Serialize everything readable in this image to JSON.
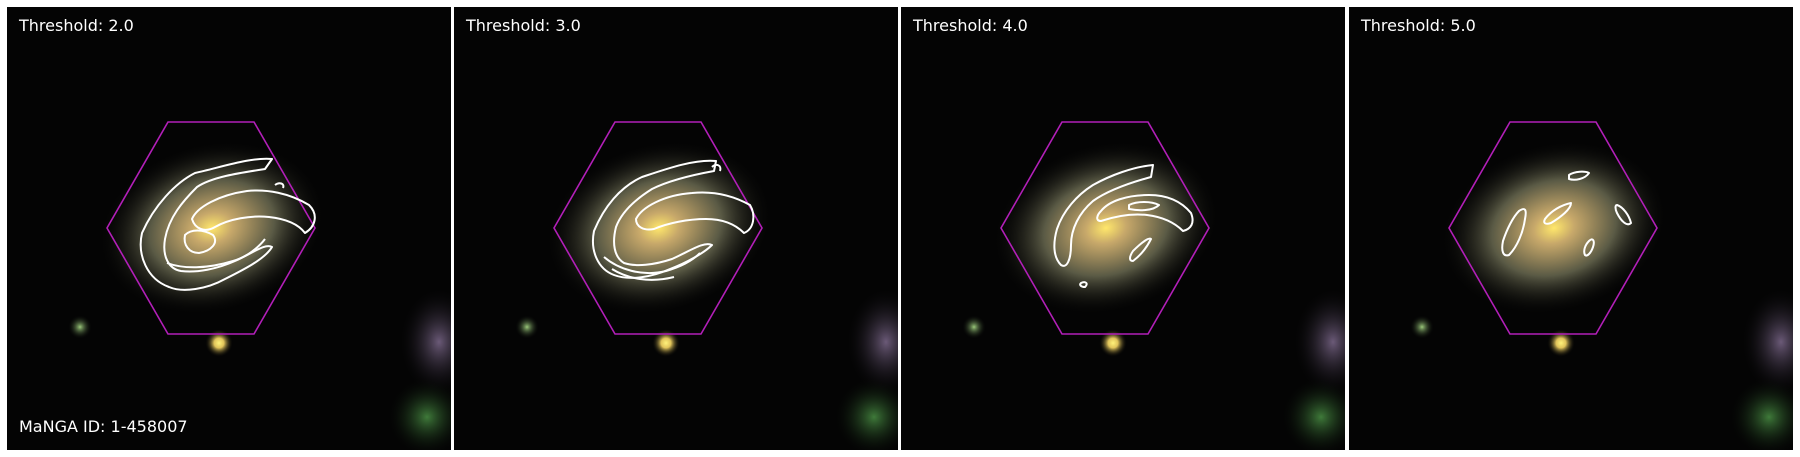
{
  "panels": [
    {
      "label": "Threshold: 2.0",
      "id_label": "MaNGA ID: 1-458007"
    },
    {
      "label": "Threshold: 3.0"
    },
    {
      "label": "Threshold: 4.0"
    },
    {
      "label": "Threshold: 5.0"
    }
  ],
  "colors": {
    "background": "#040404",
    "hexagon": "#b21fb8",
    "contour": "#ffffff",
    "galaxy_core": "#ffd85a",
    "star": "#fff36a"
  },
  "icons": [
    "galaxy-image",
    "hexagon-outline",
    "contour-lines"
  ]
}
